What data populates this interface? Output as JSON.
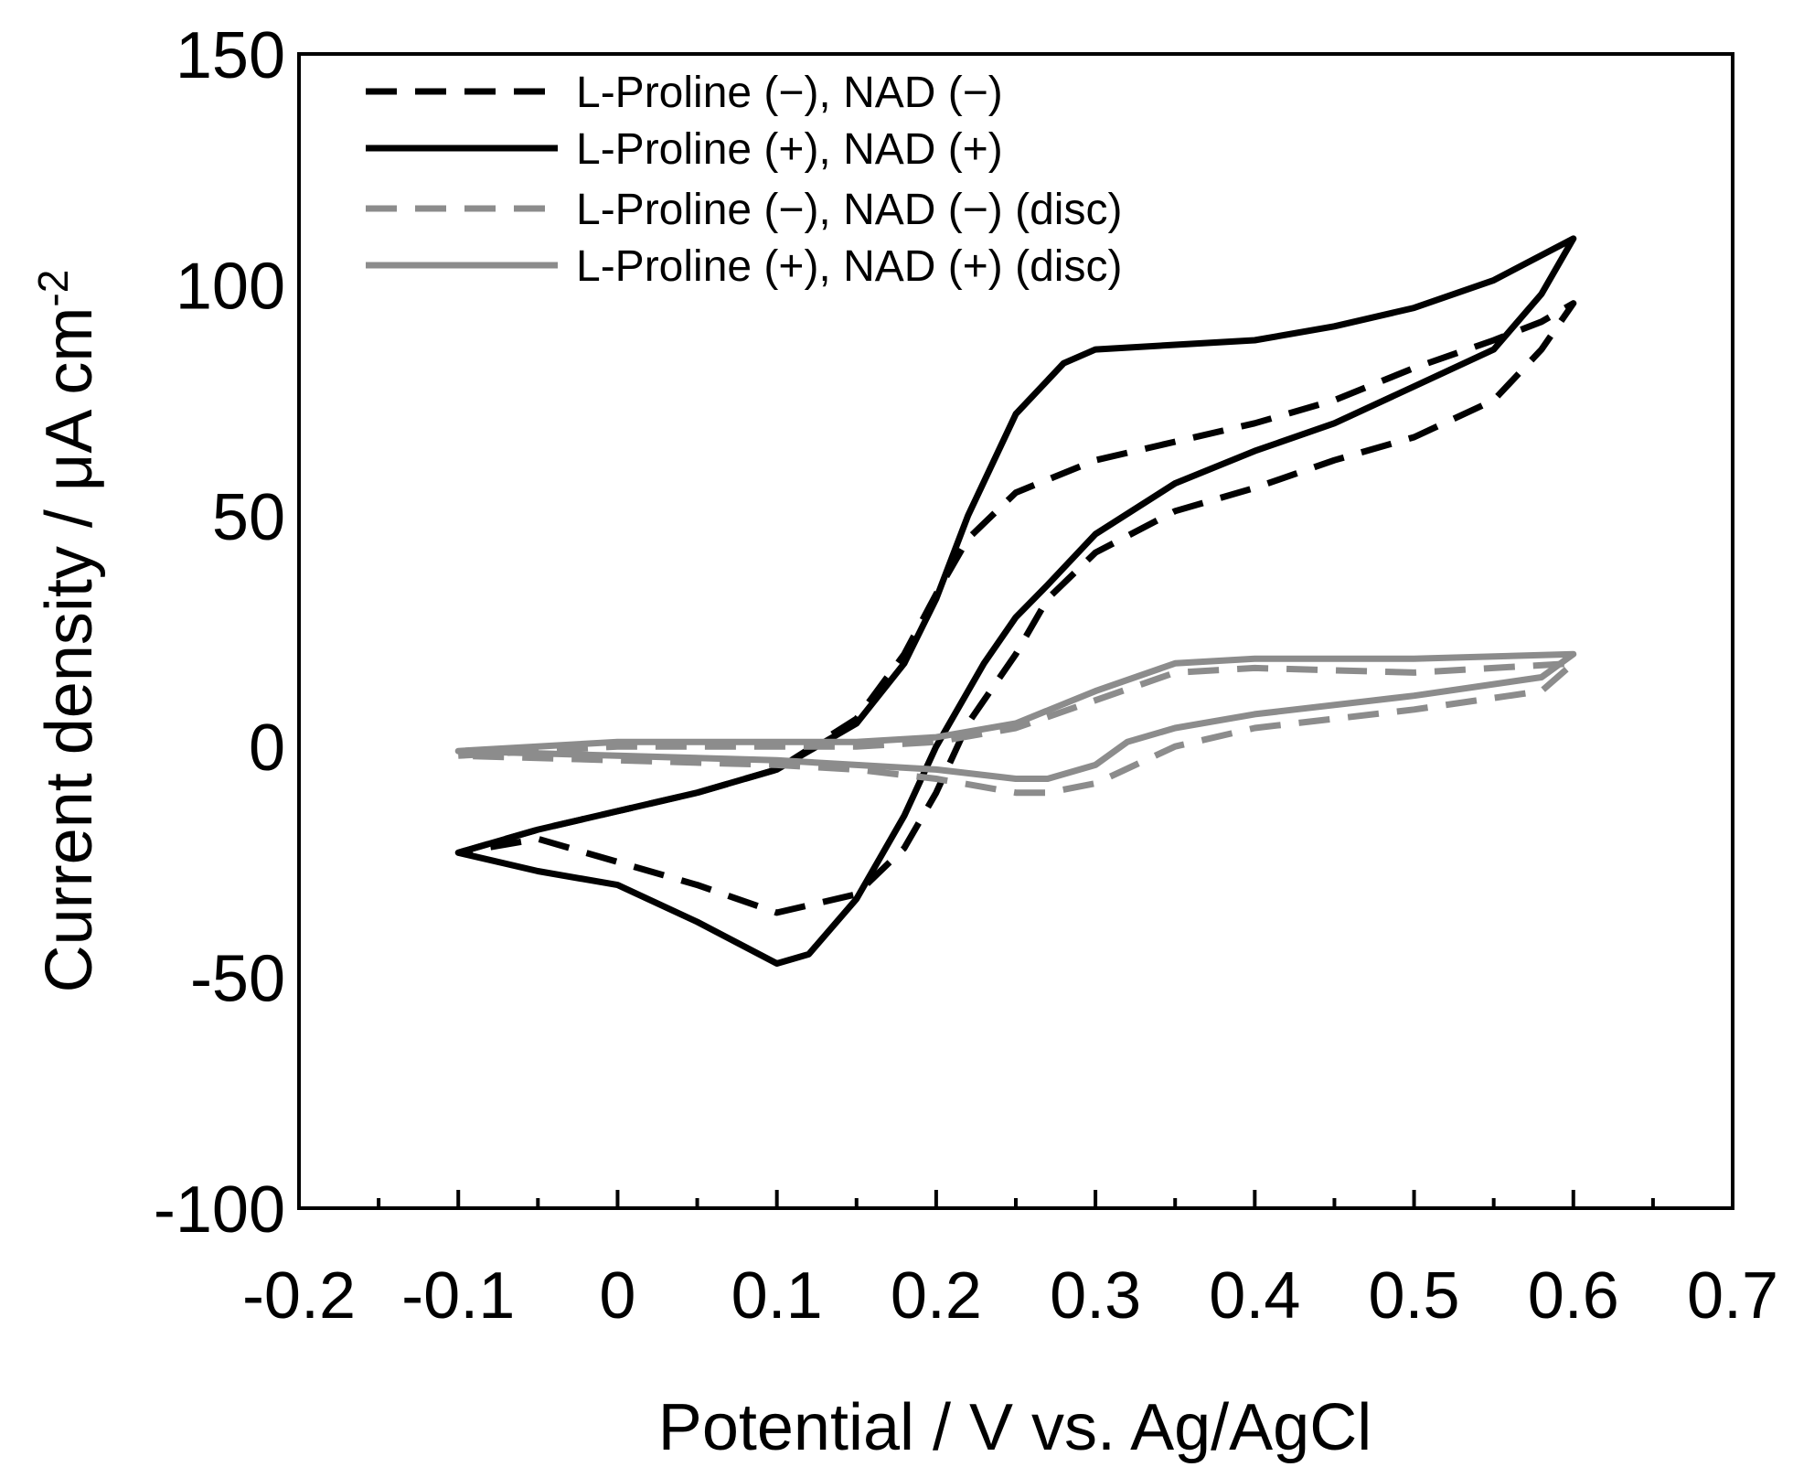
{
  "chart_data": {
    "type": "line",
    "title": "",
    "xlabel": "Potential / V vs. Ag/AgCl",
    "ylabel": "Current density / μA cm",
    "ylabel_superscript": "-2",
    "xlim": [
      -0.2,
      0.7
    ],
    "ylim": [
      -100,
      150
    ],
    "xticks": [
      -0.2,
      -0.1,
      0,
      0.1,
      0.2,
      0.3,
      0.4,
      0.5,
      0.6,
      0.7
    ],
    "xtick_labels": [
      "-0.2",
      "-0.1",
      "0",
      "0.1",
      "0.2",
      "0.3",
      "0.4",
      "0.5",
      "0.6",
      "0.7"
    ],
    "yticks": [
      -100,
      -50,
      0,
      50,
      100,
      150
    ],
    "ytick_labels": [
      "-100",
      "-50",
      "0",
      "50",
      "100",
      "150"
    ],
    "grid": false,
    "legend_position": "top-left",
    "series": [
      {
        "name": "L-Proline (−), NAD (−)",
        "color": "#000000",
        "style": "dashed",
        "x": [
          -0.1,
          -0.05,
          0.0,
          0.05,
          0.1,
          0.15,
          0.18,
          0.2,
          0.22,
          0.25,
          0.3,
          0.35,
          0.4,
          0.45,
          0.5,
          0.55,
          0.58,
          0.6,
          0.58,
          0.55,
          0.5,
          0.45,
          0.4,
          0.35,
          0.3,
          0.27,
          0.25,
          0.22,
          0.2,
          0.18,
          0.15,
          0.1,
          0.05,
          0.0,
          -0.05,
          -0.1
        ],
        "y": [
          -23,
          -18,
          -14,
          -10,
          -5,
          6,
          20,
          33,
          45,
          55,
          62,
          66,
          70,
          75,
          82,
          88,
          92,
          96,
          86,
          75,
          67,
          62,
          56,
          51,
          42,
          32,
          20,
          5,
          -10,
          -22,
          -32,
          -36,
          -30,
          -25,
          -20,
          -23
        ]
      },
      {
        "name": "L-Proline (+), NAD (+)",
        "color": "#000000",
        "style": "solid",
        "x": [
          -0.1,
          -0.05,
          0.0,
          0.05,
          0.1,
          0.15,
          0.18,
          0.2,
          0.22,
          0.25,
          0.28,
          0.3,
          0.35,
          0.4,
          0.45,
          0.5,
          0.55,
          0.6,
          0.58,
          0.55,
          0.5,
          0.45,
          0.4,
          0.35,
          0.3,
          0.27,
          0.25,
          0.23,
          0.2,
          0.18,
          0.15,
          0.12,
          0.1,
          0.05,
          0.0,
          -0.05,
          -0.1
        ],
        "y": [
          -23,
          -18,
          -14,
          -10,
          -5,
          5,
          18,
          32,
          50,
          72,
          83,
          86,
          87,
          88,
          91,
          95,
          101,
          110,
          98,
          86,
          78,
          70,
          64,
          57,
          46,
          35,
          28,
          18,
          0,
          -15,
          -33,
          -45,
          -47,
          -38,
          -30,
          -27,
          -23
        ]
      },
      {
        "name": "L-Proline (−), NAD (−) (disc)",
        "color": "#8c8c8c",
        "style": "dashed",
        "x": [
          -0.1,
          0.0,
          0.1,
          0.15,
          0.2,
          0.25,
          0.3,
          0.35,
          0.4,
          0.5,
          0.6,
          0.58,
          0.5,
          0.4,
          0.35,
          0.3,
          0.27,
          0.25,
          0.2,
          0.15,
          0.1,
          0.0,
          -0.1
        ],
        "y": [
          -2,
          0,
          0,
          0,
          1,
          4,
          10,
          16,
          17,
          16,
          18,
          12,
          8,
          4,
          0,
          -8,
          -10,
          -10,
          -7,
          -5,
          -4,
          -3,
          -2
        ]
      },
      {
        "name": "L-Proline (+), NAD (+) (disc)",
        "color": "#8c8c8c",
        "style": "solid",
        "x": [
          -0.1,
          0.0,
          0.1,
          0.15,
          0.2,
          0.25,
          0.3,
          0.35,
          0.4,
          0.5,
          0.6,
          0.58,
          0.5,
          0.4,
          0.35,
          0.32,
          0.3,
          0.27,
          0.25,
          0.2,
          0.15,
          0.1,
          0.0,
          -0.1
        ],
        "y": [
          -1,
          1,
          1,
          1,
          2,
          5,
          12,
          18,
          19,
          19,
          20,
          15,
          11,
          7,
          4,
          1,
          -4,
          -7,
          -7,
          -5,
          -4,
          -3,
          -2,
          -1
        ]
      }
    ]
  }
}
